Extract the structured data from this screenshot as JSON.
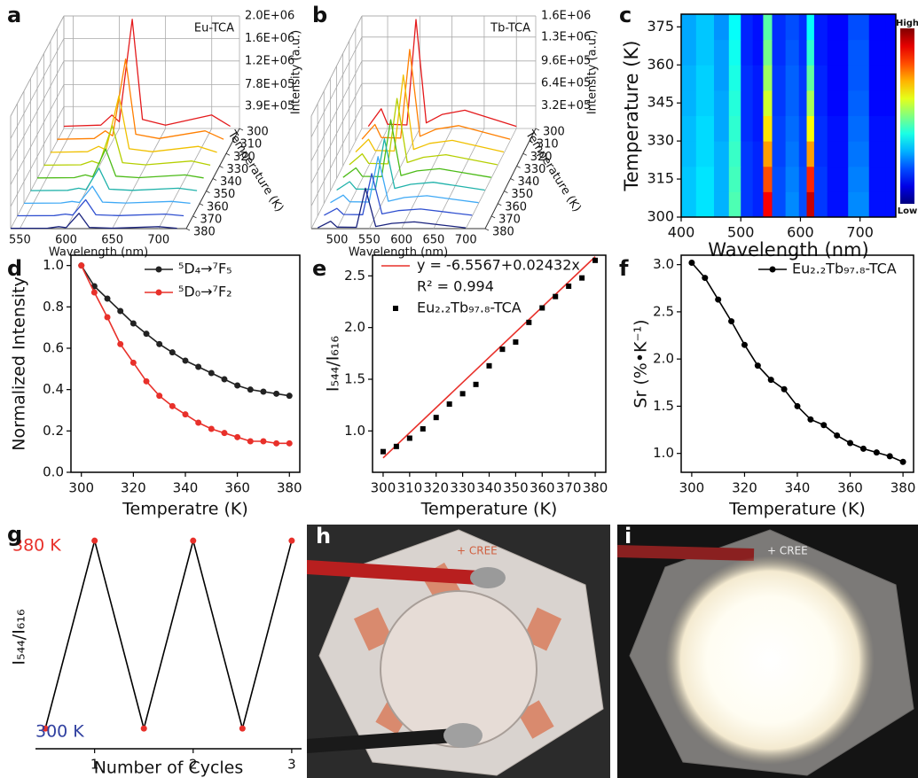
{
  "chart_data": [
    {
      "panel": "a",
      "type": "waterfall",
      "title": "Eu-TCA",
      "x": [
        540,
        580,
        592,
        600,
        614,
        625,
        650,
        700,
        720
      ],
      "xlim": [
        540,
        730
      ],
      "xticks": [
        550,
        600,
        650,
        700
      ],
      "xlabel": "Wavelength (nm)",
      "ylim": [
        0,
        2000000
      ],
      "yticks": [
        {
          "value": 390000,
          "label": "3.9E+05"
        },
        {
          "value": 780000,
          "label": "7.8E+05"
        },
        {
          "value": 1200000,
          "label": "1.2E+06"
        },
        {
          "value": 1600000,
          "label": "1.6E+06"
        },
        {
          "value": 2000000,
          "label": "2.0E+06"
        }
      ],
      "ylabel": "Intensity (a.u.)",
      "zlim": [
        300,
        380
      ],
      "zticks": [
        300,
        310,
        320,
        330,
        340,
        350,
        360,
        370,
        380
      ],
      "zlabel": "Temperature (K)",
      "series": [
        {
          "temperature": 300,
          "color": "#e41a1c",
          "values": [
            40000,
            60000,
            240000,
            120000,
            1940000,
            160000,
            60000,
            240000,
            40000
          ]
        },
        {
          "temperature": 310,
          "color": "#ff7f00",
          "values": [
            30000,
            45000,
            180000,
            90000,
            1455000,
            120000,
            45000,
            180000,
            30000
          ]
        },
        {
          "temperature": 320,
          "color": "#f0c000",
          "values": [
            21000,
            32000,
            127000,
            64000,
            1028000,
            85000,
            32000,
            127000,
            21000
          ]
        },
        {
          "temperature": 330,
          "color": "#b5cf00",
          "values": [
            15000,
            22000,
            89000,
            44000,
            718000,
            59000,
            22000,
            89000,
            15000
          ]
        },
        {
          "temperature": 340,
          "color": "#4cbb17",
          "values": [
            11000,
            16000,
            65000,
            32000,
            524000,
            43000,
            16000,
            65000,
            11000
          ]
        },
        {
          "temperature": 350,
          "color": "#20b2aa",
          "values": [
            8000,
            13000,
            50000,
            25000,
            407000,
            34000,
            13000,
            50000,
            8000
          ]
        },
        {
          "temperature": 360,
          "color": "#3fa9f5",
          "values": [
            6000,
            10000,
            38000,
            19000,
            310000,
            26000,
            10000,
            38000,
            6000
          ]
        },
        {
          "temperature": 370,
          "color": "#3050d0",
          "values": [
            6000,
            9000,
            36000,
            18000,
            291000,
            24000,
            9000,
            36000,
            6000
          ]
        },
        {
          "temperature": 380,
          "color": "#1a237e",
          "values": [
            6000,
            8000,
            34000,
            17000,
            272000,
            22000,
            8000,
            34000,
            6000
          ]
        }
      ]
    },
    {
      "panel": "b",
      "type": "waterfall",
      "title": "Tb-TCA",
      "x": [
        470,
        490,
        500,
        530,
        544,
        560,
        585,
        620,
        700
      ],
      "xlim": [
        460,
        730
      ],
      "xticks": [
        500,
        550,
        600,
        650,
        700
      ],
      "xlabel": "Wavelength (nm)",
      "ylim": [
        0,
        1600000
      ],
      "yticks": [
        {
          "value": 320000,
          "label": "3.2E+05"
        },
        {
          "value": 640000,
          "label": "6.4E+05"
        },
        {
          "value": 960000,
          "label": "9.6E+05"
        },
        {
          "value": 1300000,
          "label": "1.3E+06"
        },
        {
          "value": 1600000,
          "label": "1.6E+06"
        }
      ],
      "ylabel": "Intensity (a.u.)",
      "zlim": [
        300,
        380
      ],
      "zticks": [
        300,
        310,
        320,
        330,
        340,
        350,
        360,
        370,
        380
      ],
      "zlabel": "Temperature (K)",
      "series": [
        {
          "temperature": 300,
          "color": "#e41a1c",
          "values": [
            30000,
            280000,
            60000,
            50000,
            1550000,
            80000,
            200000,
            260000,
            30000
          ]
        },
        {
          "temperature": 310,
          "color": "#ff7f00",
          "values": [
            25000,
            235000,
            50000,
            42000,
            1302000,
            67000,
            168000,
            218000,
            25000
          ]
        },
        {
          "temperature": 320,
          "color": "#f0c000",
          "values": [
            22000,
            202000,
            43000,
            36000,
            1116000,
            58000,
            144000,
            187000,
            22000
          ]
        },
        {
          "temperature": 330,
          "color": "#b5cf00",
          "values": [
            19000,
            174000,
            37000,
            31000,
            961000,
            50000,
            124000,
            161000,
            19000
          ]
        },
        {
          "temperature": 340,
          "color": "#4cbb17",
          "values": [
            16000,
            151000,
            32000,
            27000,
            837000,
            43000,
            108000,
            140000,
            16000
          ]
        },
        {
          "temperature": 350,
          "color": "#20b2aa",
          "values": [
            14000,
            134000,
            29000,
            24000,
            744000,
            38000,
            96000,
            125000,
            14000
          ]
        },
        {
          "temperature": 360,
          "color": "#3fa9f5",
          "values": [
            13000,
            120000,
            26000,
            22000,
            667000,
            34000,
            86000,
            112000,
            13000
          ]
        },
        {
          "temperature": 370,
          "color": "#3050d0",
          "values": [
            12000,
            109000,
            23000,
            20000,
            605000,
            31000,
            78000,
            101000,
            12000
          ]
        },
        {
          "temperature": 380,
          "color": "#1a237e",
          "values": [
            11000,
            104000,
            22000,
            19000,
            574000,
            30000,
            74000,
            96000,
            11000
          ]
        }
      ]
    },
    {
      "panel": "c",
      "type": "heatmap",
      "colorbar_high": "High",
      "colorbar_low": "Low",
      "clim": [
        0,
        1
      ],
      "x": [
        410,
        440,
        470,
        490,
        510,
        530,
        545,
        560,
        590,
        605,
        616,
        630,
        660,
        700,
        730,
        755
      ],
      "y": [
        305,
        315,
        325,
        335,
        345,
        355,
        365,
        375
      ],
      "xlim": [
        400,
        760
      ],
      "xticks": [
        400,
        500,
        600,
        700
      ],
      "xlabel": "Wavelength (nm)",
      "ylim": [
        300,
        380
      ],
      "yticks": [
        300,
        315,
        330,
        345,
        360,
        375
      ],
      "ylabel": "Temperature (K)",
      "values": [
        [
          0.32,
          0.35,
          0.3,
          0.45,
          0.18,
          0.16,
          0.88,
          0.2,
          0.26,
          0.2,
          0.93,
          0.18,
          0.14,
          0.26,
          0.14,
          0.14
        ],
        [
          0.32,
          0.35,
          0.3,
          0.44,
          0.18,
          0.16,
          0.8,
          0.2,
          0.25,
          0.2,
          0.84,
          0.18,
          0.14,
          0.25,
          0.14,
          0.14
        ],
        [
          0.31,
          0.34,
          0.3,
          0.43,
          0.18,
          0.16,
          0.72,
          0.19,
          0.24,
          0.19,
          0.72,
          0.17,
          0.14,
          0.24,
          0.14,
          0.14
        ],
        [
          0.31,
          0.34,
          0.29,
          0.42,
          0.17,
          0.15,
          0.65,
          0.19,
          0.23,
          0.19,
          0.62,
          0.17,
          0.14,
          0.23,
          0.14,
          0.14
        ],
        [
          0.3,
          0.33,
          0.29,
          0.41,
          0.17,
          0.15,
          0.58,
          0.18,
          0.22,
          0.18,
          0.54,
          0.16,
          0.13,
          0.22,
          0.13,
          0.13
        ],
        [
          0.3,
          0.33,
          0.28,
          0.4,
          0.17,
          0.15,
          0.53,
          0.18,
          0.22,
          0.18,
          0.47,
          0.16,
          0.13,
          0.21,
          0.13,
          0.13
        ],
        [
          0.29,
          0.32,
          0.28,
          0.39,
          0.16,
          0.14,
          0.49,
          0.17,
          0.21,
          0.17,
          0.42,
          0.15,
          0.13,
          0.21,
          0.13,
          0.13
        ],
        [
          0.29,
          0.32,
          0.27,
          0.38,
          0.16,
          0.14,
          0.46,
          0.17,
          0.2,
          0.17,
          0.38,
          0.15,
          0.13,
          0.2,
          0.13,
          0.13
        ]
      ]
    },
    {
      "panel": "d",
      "type": "line",
      "legend": "upper right",
      "x": [
        300,
        305,
        310,
        315,
        320,
        325,
        330,
        335,
        340,
        345,
        350,
        355,
        360,
        365,
        370,
        375,
        380
      ],
      "xlim": [
        296,
        384
      ],
      "xticks": [
        300,
        320,
        340,
        360,
        380
      ],
      "xlabel": "Temperatre (K)",
      "ylim": [
        0,
        1.05
      ],
      "yticks": [
        {
          "value": 0,
          "label": "0.0"
        },
        0.2,
        0.4,
        0.6,
        0.8,
        {
          "value": 1,
          "label": "1.0"
        }
      ],
      "ylabel": "Normalized Intensity",
      "series": [
        {
          "name": "⁵D₄→⁷F₅",
          "color": "#222222",
          "values": [
            1.0,
            0.9,
            0.84,
            0.78,
            0.72,
            0.67,
            0.62,
            0.58,
            0.54,
            0.51,
            0.48,
            0.45,
            0.42,
            0.4,
            0.39,
            0.38,
            0.37
          ]
        },
        {
          "name": "⁵D₀→⁷F₂",
          "color": "#e8302a",
          "values": [
            1.0,
            0.87,
            0.75,
            0.62,
            0.53,
            0.44,
            0.37,
            0.32,
            0.28,
            0.24,
            0.21,
            0.19,
            0.17,
            0.15,
            0.15,
            0.14,
            0.14
          ]
        }
      ]
    },
    {
      "panel": "e",
      "type": "scatter",
      "legend": "upper left",
      "x": [
        300,
        305,
        310,
        315,
        320,
        325,
        330,
        335,
        340,
        345,
        350,
        355,
        360,
        365,
        370,
        375,
        380
      ],
      "xlim": [
        296,
        384
      ],
      "xticks": [
        300,
        310,
        320,
        330,
        340,
        350,
        360,
        370,
        380
      ],
      "xlabel": "Temperature (K)",
      "ylim": [
        0.6,
        2.7
      ],
      "yticks": [
        {
          "value": 1,
          "label": "1.0"
        },
        1.5,
        {
          "value": 2,
          "label": "2.0"
        },
        2.5
      ],
      "ylabel": "I₅₄₄/I₆₁₆",
      "fit": {
        "intercept": -6.5567,
        "slope": 0.02432,
        "color": "#e8302a",
        "equation": "y = -6.5567+0.02432x",
        "r2_text": "R² = 0.994"
      },
      "series": [
        {
          "name": "Eu₂.₂Tb₉₇.₈-TCA",
          "color": "#000000",
          "values": [
            0.8,
            0.85,
            0.93,
            1.02,
            1.13,
            1.26,
            1.36,
            1.45,
            1.63,
            1.79,
            1.86,
            2.05,
            2.19,
            2.3,
            2.4,
            2.48,
            2.65
          ]
        }
      ]
    },
    {
      "panel": "f",
      "type": "line",
      "legend": "upper right",
      "x": [
        300,
        305,
        310,
        315,
        320,
        325,
        330,
        335,
        340,
        345,
        350,
        355,
        360,
        365,
        370,
        375,
        380
      ],
      "xlim": [
        296,
        384
      ],
      "xticks": [
        300,
        320,
        340,
        360,
        380
      ],
      "xlabel": "Temperature (K)",
      "ylim": [
        0.8,
        3.1
      ],
      "yticks": [
        {
          "value": 1,
          "label": "1.0"
        },
        1.5,
        {
          "value": 2,
          "label": "2.0"
        },
        2.5,
        {
          "value": 3,
          "label": "3.0"
        }
      ],
      "ylabel": "Sr (%•K⁻¹)",
      "series": [
        {
          "name": "Eu₂.₂Tb₉₇.₈-TCA",
          "color": "#000000",
          "values": [
            3.02,
            2.86,
            2.63,
            2.4,
            2.15,
            1.93,
            1.78,
            1.68,
            1.5,
            1.36,
            1.3,
            1.19,
            1.11,
            1.05,
            1.01,
            0.97,
            0.91
          ]
        }
      ]
    },
    {
      "panel": "g",
      "type": "line",
      "x": [
        0.5,
        1,
        1.5,
        2,
        2.5,
        3
      ],
      "xlim": [
        0.4,
        3.1
      ],
      "xticks": [
        1,
        2,
        3
      ],
      "xlabel": "Number of Cycles",
      "ylim": [
        0.6,
        2.8
      ],
      "ylabel": "I₅₄₄/I₆₁₆",
      "annotations": [
        {
          "text": "380 K",
          "color": "#e8302a"
        },
        {
          "text": "300 K",
          "color": "#3040a0"
        }
      ],
      "series": [
        {
          "color": "#000000",
          "marker_color": "#e8302a",
          "values": [
            0.8,
            2.65,
            0.8,
            2.65,
            0.8,
            2.65
          ]
        }
      ]
    }
  ],
  "photos": [
    {
      "label": "h",
      "board_text": "+ CREE"
    },
    {
      "label": "i",
      "board_text": "+ CREE"
    }
  ]
}
